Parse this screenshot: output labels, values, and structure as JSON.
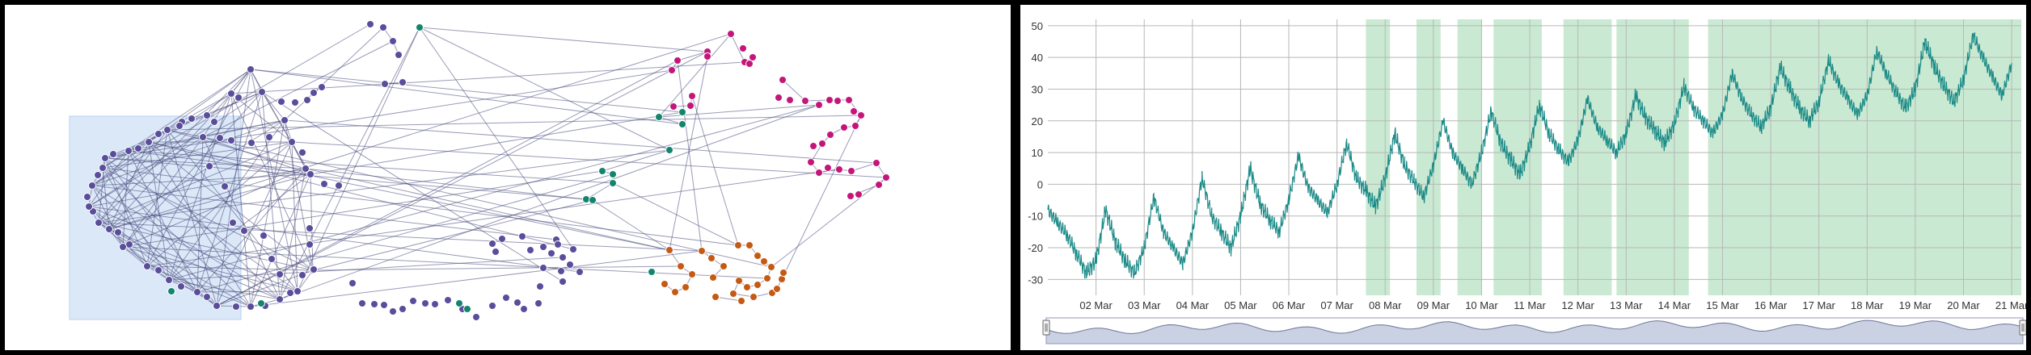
{
  "network": {
    "colors": {
      "edge": "#474b7c",
      "selection_fill": "#dbe8f8",
      "selection_stroke": "#b9d0ee",
      "purple_node": "#5a4d9b",
      "green_node": "#12856f",
      "pink_node": "#c4167a",
      "orange_node": "#c55a14"
    }
  },
  "timeseries": {
    "series_color": "#1a8a87",
    "band_color": "#a7dbb4",
    "grid_color": "#b7b7b7",
    "navigator_fill": "#c9d1e3",
    "navigator_stroke": "#6d7698",
    "chart_data": {
      "type": "line",
      "x_start": "01 Mar",
      "x_end": "21 Mar",
      "x_ticks": [
        "02 Mar",
        "03 Mar",
        "04 Mar",
        "05 Mar",
        "06 Mar",
        "07 Mar",
        "08 Mar",
        "09 Mar",
        "10 Mar",
        "11 Mar",
        "12 Mar",
        "13 Mar",
        "14 Mar",
        "15 Mar",
        "16 Mar",
        "17 Mar",
        "18 Mar",
        "19 Mar",
        "20 Mar",
        "21 Mar"
      ],
      "y_ticks": [
        "50",
        "40",
        "30",
        "20",
        "10",
        "0",
        "-10",
        "-20",
        "-30"
      ],
      "ylim": [
        -35,
        52
      ],
      "grid": true,
      "highlight_bands": [
        {
          "start": "07 Mar 14:00",
          "end": "08 Mar 02:00"
        },
        {
          "start": "08 Mar 15:00",
          "end": "09 Mar 03:00"
        },
        {
          "start": "09 Mar 12:00",
          "end": "10 Mar 00:00"
        },
        {
          "start": "10 Mar 05:00",
          "end": "11 Mar 06:00"
        },
        {
          "start": "11 Mar 17:00",
          "end": "12 Mar 17:00"
        },
        {
          "start": "12 Mar 19:00",
          "end": "14 Mar 07:00"
        },
        {
          "start": "14 Mar 17:00",
          "end": "21 Mar 07:00"
        }
      ],
      "series_points": [
        [
          0,
          -8
        ],
        [
          0.2,
          -12
        ],
        [
          0.4,
          -16
        ],
        [
          0.6,
          -22
        ],
        [
          0.8,
          -28
        ],
        [
          1.0,
          -24
        ],
        [
          1.2,
          -8
        ],
        [
          1.4,
          -18
        ],
        [
          1.6,
          -24
        ],
        [
          1.8,
          -28
        ],
        [
          2.0,
          -20
        ],
        [
          2.2,
          -4
        ],
        [
          2.4,
          -15
        ],
        [
          2.6,
          -20
        ],
        [
          2.8,
          -25
        ],
        [
          3.0,
          -15
        ],
        [
          3.2,
          2
        ],
        [
          3.4,
          -10
        ],
        [
          3.6,
          -15
        ],
        [
          3.8,
          -20
        ],
        [
          4.0,
          -10
        ],
        [
          4.2,
          5
        ],
        [
          4.4,
          -6
        ],
        [
          4.6,
          -11
        ],
        [
          4.8,
          -15
        ],
        [
          5.0,
          -5
        ],
        [
          5.2,
          9
        ],
        [
          5.4,
          -1
        ],
        [
          5.6,
          -5
        ],
        [
          5.8,
          -9
        ],
        [
          6.0,
          0
        ],
        [
          6.2,
          13
        ],
        [
          6.4,
          2
        ],
        [
          6.6,
          -2
        ],
        [
          6.8,
          -7
        ],
        [
          7.0,
          2
        ],
        [
          7.2,
          16
        ],
        [
          7.4,
          6
        ],
        [
          7.6,
          1
        ],
        [
          7.8,
          -4
        ],
        [
          8.0,
          6
        ],
        [
          8.2,
          20
        ],
        [
          8.4,
          10
        ],
        [
          8.6,
          5
        ],
        [
          8.8,
          0
        ],
        [
          9.0,
          10
        ],
        [
          9.2,
          23
        ],
        [
          9.4,
          13
        ],
        [
          9.6,
          8
        ],
        [
          9.8,
          3
        ],
        [
          10.0,
          12
        ],
        [
          10.2,
          25
        ],
        [
          10.4,
          16
        ],
        [
          10.6,
          11
        ],
        [
          10.8,
          7
        ],
        [
          11.0,
          14
        ],
        [
          11.2,
          27
        ],
        [
          11.4,
          18
        ],
        [
          11.6,
          14
        ],
        [
          11.8,
          10
        ],
        [
          12.0,
          16
        ],
        [
          12.2,
          28
        ],
        [
          12.4,
          21
        ],
        [
          12.6,
          17
        ],
        [
          12.8,
          13
        ],
        [
          13.0,
          19
        ],
        [
          13.2,
          31
        ],
        [
          13.4,
          24
        ],
        [
          13.6,
          20
        ],
        [
          13.8,
          16
        ],
        [
          14.0,
          22
        ],
        [
          14.2,
          35
        ],
        [
          14.4,
          27
        ],
        [
          14.6,
          22
        ],
        [
          14.8,
          18
        ],
        [
          15.0,
          24
        ],
        [
          15.2,
          37
        ],
        [
          15.4,
          30
        ],
        [
          15.6,
          24
        ],
        [
          15.8,
          20
        ],
        [
          16.0,
          26
        ],
        [
          16.2,
          39
        ],
        [
          16.4,
          32
        ],
        [
          16.6,
          27
        ],
        [
          16.8,
          22
        ],
        [
          17.0,
          28
        ],
        [
          17.2,
          42
        ],
        [
          17.4,
          35
        ],
        [
          17.6,
          29
        ],
        [
          17.8,
          24
        ],
        [
          18.0,
          30
        ],
        [
          18.2,
          45
        ],
        [
          18.4,
          37
        ],
        [
          18.6,
          31
        ],
        [
          18.8,
          26
        ],
        [
          19.0,
          33
        ],
        [
          19.2,
          47
        ],
        [
          19.4,
          40
        ],
        [
          19.6,
          34
        ],
        [
          19.8,
          28
        ],
        [
          20.0,
          38
        ]
      ],
      "navigator": {
        "visible": true,
        "selection": "full"
      }
    }
  }
}
